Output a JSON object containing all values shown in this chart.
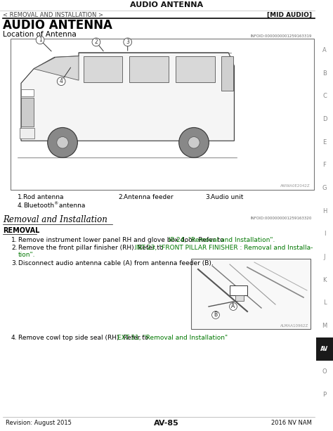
{
  "page_title": "AUDIO ANTENNA",
  "breadcrumb": "< REMOVAL AND INSTALLATION >",
  "section_tag": "[MID AUDIO]",
  "section_title": "AUDIO ANTENNA",
  "subsection_title": "Location of Antenna",
  "info_code_1": "INFOID:0000000001259163319",
  "info_code_2": "INFOID:0000000001259163320",
  "legend_items": [
    {
      "num": "1.",
      "text": "Rod antenna"
    },
    {
      "num": "2.",
      "text": "Antenna feeder"
    },
    {
      "num": "3.",
      "text": "Audio unit"
    },
    {
      "num": "4.",
      "text": "Bluetooth® antenna"
    }
  ],
  "removal_title": "Removal and Installation",
  "removal_subtitle": "REMOVAL",
  "step1_plain": "Remove instrument lower panel RH and glove box door. Refer to ",
  "step1_link": "IP-24, \"Removal and Installation\"",
  "step1_end": ".",
  "step2_plain": "Remove the front pillar finisher (RH). Refer to ",
  "step2_link_1": "INT-23, \"FRONT PILLAR FINISHER : Removal and Installa-",
  "step2_link_2": "tion\"",
  "step2_end": ".",
  "step3_plain": "Disconnect audio antenna cable (A) from antenna feeder (B).",
  "step4_plain": "Remove cowl top side seal (RH). Refer to ",
  "step4_link": "EXT-31, \"Removal and Installation\"",
  "footer_left": "Revision: August 2015",
  "footer_center": "AV-85",
  "footer_right": "2016 NV NAM",
  "sidebar_letters": [
    "A",
    "B",
    "C",
    "D",
    "E",
    "F",
    "G",
    "H",
    "I",
    "J",
    "K",
    "L",
    "M",
    "AV",
    "O",
    "P"
  ],
  "bg_color": "#ffffff",
  "text_color": "#000000",
  "link_color": "#007700",
  "sidebar_av_color": "#1a1a1a",
  "sidebar_av_text_color": "#ffffff",
  "sidebar_letter_color": "#888888",
  "watermark_1": "AWWA0E2042Z",
  "watermark_2": "ALMAA10962Z"
}
